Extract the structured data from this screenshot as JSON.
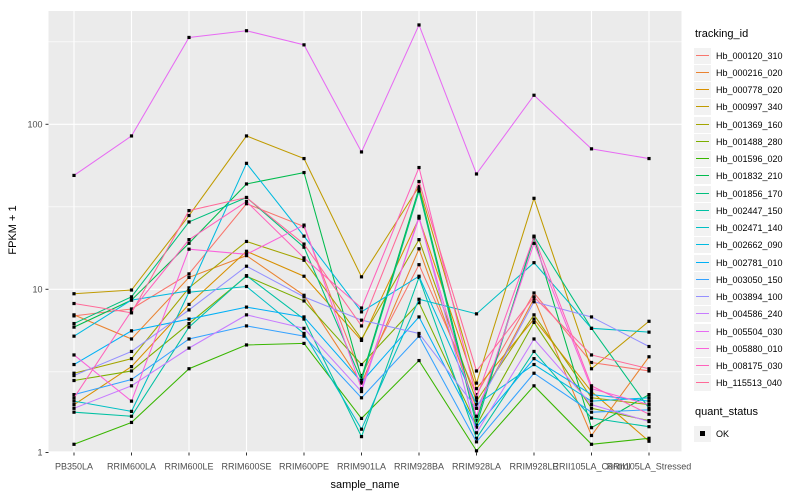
{
  "figure": {
    "ylab": "FPKM + 1",
    "xlab": "sample_name",
    "legend1_title": "tracking_id",
    "legend2_title": "quant_status",
    "panel_bg": "#EBEBEB",
    "grid_color": "#FFFFFF",
    "tick_text_color": "#4D4D4D",
    "marker_color": "#000000"
  },
  "chart_data": {
    "type": "line",
    "title": "",
    "xlabel": "sample_name",
    "ylabel": "FPKM + 1",
    "y_scale": "log10",
    "y_ticks": [
      1,
      10,
      100
    ],
    "y_minor_ticks": [
      3.162,
      31.62,
      316.2
    ],
    "ylim": [
      0.95,
      490
    ],
    "grid": true,
    "legend_position": "right",
    "marker": "black-square",
    "categories": [
      "PB350LA",
      "RRIM600LA",
      "RRIM600LE",
      "RRIM600SE",
      "RRIM600PE",
      "RRIM901LA",
      "RRIM928BA",
      "RRIM928LA",
      "RRIM928LE",
      "RRII105LA_Control",
      "RRII105LA_Stressed"
    ],
    "series": [
      {
        "name": "Hb_000120_310",
        "color": "#F8766D",
        "quant_status": "OK",
        "values": [
          6.9,
          7.6,
          12.4,
          33,
          24,
          3.0,
          14.1,
          2.3,
          9.5,
          3.6,
          3.2
        ]
      },
      {
        "name": "Hb_000216_020",
        "color": "#EA8331",
        "quant_status": "OK",
        "values": [
          7.0,
          5.0,
          11.8,
          16,
          9.2,
          2.7,
          17.6,
          1.9,
          8.8,
          1.3,
          3.9
        ]
      },
      {
        "name": "Hb_000778_020",
        "color": "#D89000",
        "quant_status": "OK",
        "values": [
          2.0,
          3.4,
          8.1,
          17,
          12,
          4.9,
          27,
          2.5,
          6.6,
          2.4,
          1.2
        ]
      },
      {
        "name": "Hb_000997_340",
        "color": "#C09B00",
        "quant_status": "OK",
        "values": [
          9.4,
          9.9,
          28,
          85,
          62,
          11.9,
          42,
          2.7,
          35.6,
          3.3,
          6.4
        ]
      },
      {
        "name": "Hb_001369_160",
        "color": "#A3A500",
        "quant_status": "OK",
        "values": [
          3.1,
          3.8,
          10.2,
          19.5,
          15,
          5.0,
          20,
          2.1,
          7.0,
          2.2,
          2.0
        ]
      },
      {
        "name": "Hb_001488_280",
        "color": "#7CAE00",
        "quant_status": "OK",
        "values": [
          2.8,
          3.2,
          6.2,
          12,
          8.5,
          3.5,
          8.3,
          1.5,
          6.3,
          1.9,
          1.6
        ]
      },
      {
        "name": "Hb_001596_020",
        "color": "#39B600",
        "quant_status": "OK",
        "values": [
          1.15,
          1.56,
          3.3,
          4.6,
          4.7,
          1.65,
          3.7,
          1.05,
          2.6,
          1.15,
          1.25
        ]
      },
      {
        "name": "Hb_001832_210",
        "color": "#00BB4E",
        "quant_status": "OK",
        "values": [
          5.9,
          8.6,
          19,
          43.5,
          51,
          2.9,
          41,
          1.6,
          20.5,
          1.45,
          2.3
        ]
      },
      {
        "name": "Hb_001856_170",
        "color": "#00BF7D",
        "quant_status": "OK",
        "values": [
          6.2,
          9.0,
          25.6,
          36,
          18,
          2.8,
          39.4,
          1.5,
          21,
          5.8,
          1.9
        ]
      },
      {
        "name": "Hb_002447_150",
        "color": "#00C1A3",
        "quant_status": "OK",
        "values": [
          1.8,
          1.7,
          5.9,
          12.1,
          6.6,
          1.28,
          11.8,
          1.25,
          4.2,
          1.66,
          1.47
        ]
      },
      {
        "name": "Hb_002471_140",
        "color": "#00BFC4",
        "quant_status": "OK",
        "values": [
          2.1,
          1.82,
          9.6,
          10.4,
          5.4,
          1.42,
          8.7,
          7.1,
          14.5,
          5.8,
          5.5
        ]
      },
      {
        "name": "Hb_002662_090",
        "color": "#00BAE0",
        "quant_status": "OK",
        "values": [
          5.2,
          8.6,
          9.8,
          58,
          21,
          7.3,
          12,
          2.0,
          3.5,
          2.1,
          2.2
        ]
      },
      {
        "name": "Hb_002781_010",
        "color": "#00B0F6",
        "quant_status": "OK",
        "values": [
          3.5,
          5.6,
          6.6,
          7.8,
          6.8,
          2.74,
          6.8,
          1.46,
          3.8,
          2.3,
          2.1
        ]
      },
      {
        "name": "Hb_003050_150",
        "color": "#35A2FF",
        "quant_status": "OK",
        "values": [
          2.3,
          2.84,
          5.0,
          6.0,
          5.2,
          2.2,
          5.2,
          1.19,
          3.1,
          1.8,
          1.86
        ]
      },
      {
        "name": "Hb_003894_100",
        "color": "#9590FF",
        "quant_status": "OK",
        "values": [
          3.0,
          4.2,
          7.5,
          13.8,
          9.0,
          6.5,
          5.4,
          1.9,
          8.4,
          6.8,
          4.5
        ]
      },
      {
        "name": "Hb_004586_240",
        "color": "#C77CFF",
        "quant_status": "OK",
        "values": [
          1.9,
          2.6,
          4.4,
          7.0,
          5.8,
          2.4,
          27.7,
          1.35,
          5.0,
          2.0,
          1.58
        ]
      },
      {
        "name": "Hb_005504_030",
        "color": "#E76BF3",
        "quant_status": "OK",
        "values": [
          49,
          85,
          336,
          369,
          303,
          68,
          400,
          50,
          150,
          71,
          62
        ]
      },
      {
        "name": "Hb_005880_010",
        "color": "#FA62DB",
        "quant_status": "OK",
        "values": [
          4.0,
          2.1,
          17.5,
          16.3,
          24.5,
          2.5,
          27,
          1.7,
          19,
          2.5,
          2.0
        ]
      },
      {
        "name": "Hb_008175_030",
        "color": "#FF62BC",
        "quant_status": "OK",
        "values": [
          2.2,
          7.4,
          20,
          34,
          15.5,
          7.7,
          54.7,
          2.2,
          20.8,
          2.6,
          1.75
        ]
      },
      {
        "name": "Hb_115513_040",
        "color": "#FF6A98",
        "quant_status": "OK",
        "values": [
          8.2,
          7.2,
          30,
          36,
          18.8,
          6.0,
          45,
          3.2,
          9.0,
          4.0,
          3.3
        ]
      }
    ],
    "quant_status_items": [
      {
        "label": "OK",
        "marker": "black-square"
      }
    ]
  }
}
